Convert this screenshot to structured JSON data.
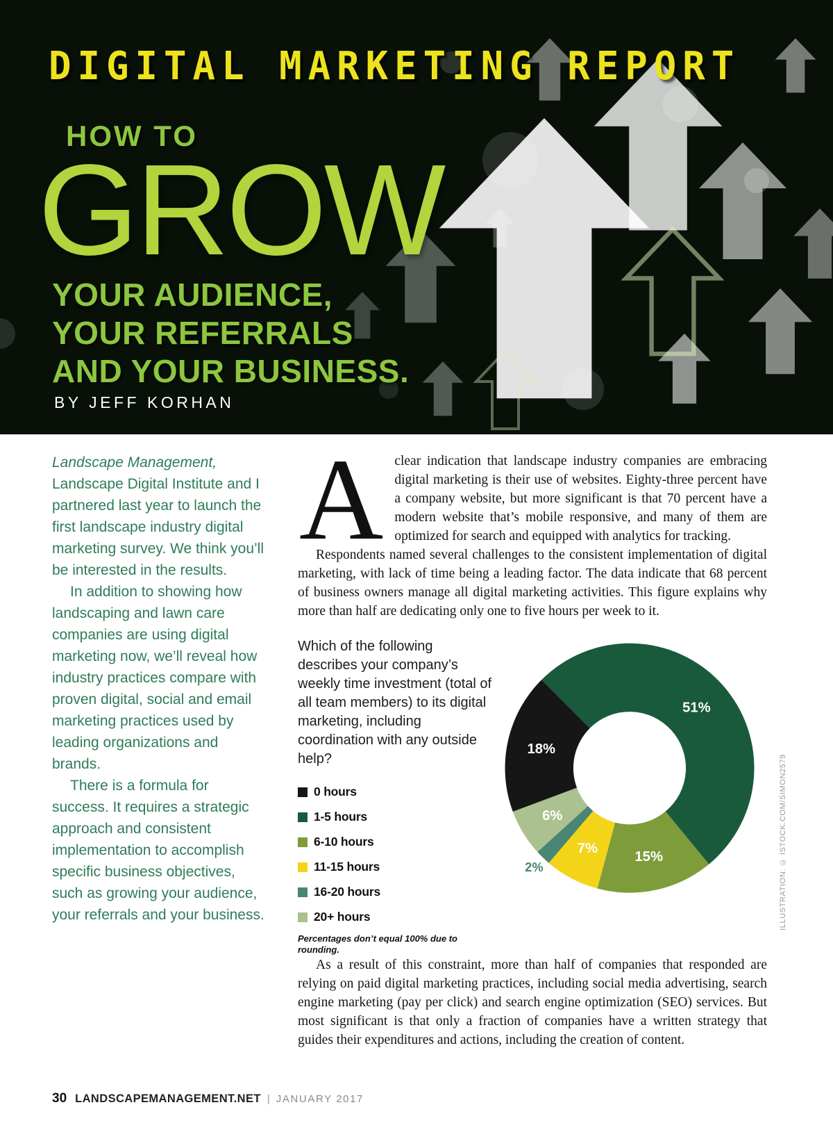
{
  "header": {
    "kicker": "DIGITAL MARKETING REPORT",
    "how_to": "HOW TO",
    "grow": "GROW",
    "subtitle_lines": [
      "YOUR AUDIENCE,",
      "YOUR REFERRALS",
      "AND YOUR BUSINESS."
    ],
    "byline": "BY JEFF KORHAN"
  },
  "left_column": {
    "p1_lead": "Landscape Management,",
    "p1_rest": " Landscape Digital Institute and I partnered last year to launch the first landscape industry digital marketing survey. We think you’ll be interested in the results.",
    "p2": "In addition to showing how landscaping and lawn care companies are using digital marketing now, we’ll reveal how industry practices compare with proven digital, social and email marketing practices used by leading organizations and brands.",
    "p3": "There is a formula for success. It requires a strategic approach and consistent implementation to accomplish specific business objectives, such as growing your audience, your referrals and your business."
  },
  "article": {
    "dropcap": "A",
    "para1": "clear indication that landscape industry companies are embracing digital marketing is their use of websites. Eighty-three percent have a company website, but more significant is that 70 percent have a modern website that’s mobile responsive, and many of them are optimized for search and equipped with analytics for tracking.",
    "para2": "Respondents named several challenges to the consistent implementation of digital marketing, with lack of time being a leading factor. The data indicate that 68 percent of business owners manage all digital marketing activities. This figure explains why more than half are dedicating only one to five hours per week to it.",
    "para3": "As a result of this constraint, more than half of companies that responded are relying on paid digital marketing practices, including social media advertising, search engine marketing (pay per click) and search engine optimization (SEO) services. But most significant is that only a fraction of companies have a written strategy that guides their expenditures and actions, including the creation of content."
  },
  "chart_data": {
    "type": "pie",
    "variant": "donut",
    "question": "Which of the following describes your company’s weekly time investment (total of all team members) to its digital marketing, including coordination with any outside help?",
    "segments": [
      {
        "label": "0 hours",
        "value_pct": 18,
        "color": "#161616"
      },
      {
        "label": "1-5 hours",
        "value_pct": 51,
        "color": "#1a5a3c"
      },
      {
        "label": "6-10 hours",
        "value_pct": 15,
        "color": "#7f9c3b"
      },
      {
        "label": "11-15 hours",
        "value_pct": 7,
        "color": "#f3d418"
      },
      {
        "label": "16-20 hours",
        "value_pct": 2,
        "color": "#4a8674"
      },
      {
        "label": "20+ hours",
        "value_pct": 6,
        "color": "#abc18f"
      }
    ],
    "draw_order": [
      1,
      2,
      3,
      4,
      5,
      0
    ],
    "start_angle_deg": -45,
    "direction": "clockwise",
    "legend_position": "left",
    "footnote": "Percentages don’t equal 100% due to rounding."
  },
  "footer": {
    "page_number": "30",
    "site": "LANDSCAPEMANAGEMENT.NET",
    "separator": "|",
    "date": "JANUARY 2017"
  },
  "credit": "ILLUSTRATION: © ISTOCK.COM/SIMON2579",
  "colors": {
    "kicker_yellow": "#ece31d",
    "accent_green": "#8dc63f",
    "grow_green": "#b2d53d",
    "left_text_green": "#2e7c58"
  }
}
